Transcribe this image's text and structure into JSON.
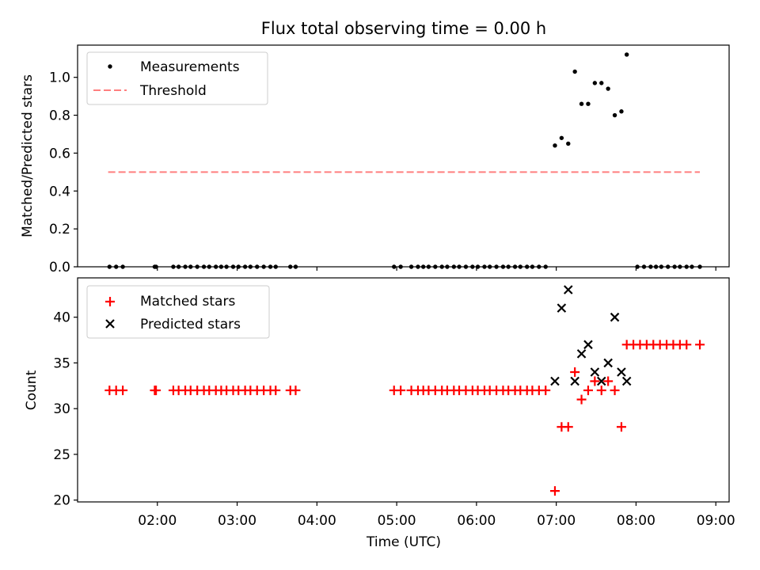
{
  "chart_data": [
    {
      "type": "scatter",
      "title": "Flux total observing time = 0.00 h",
      "ylabel": "Matched/Predicted stars",
      "xlabel": "",
      "ylim": [
        0,
        1.17
      ],
      "xlim": [
        "01:00",
        "09:10"
      ],
      "yticks": [
        0.0,
        0.2,
        0.4,
        0.6,
        0.8,
        1.0
      ],
      "ytick_labels": [
        "0.0",
        "0.2",
        "0.4",
        "0.6",
        "0.8",
        "1.0"
      ],
      "legend_position": "top-left",
      "series": [
        {
          "name": "Measurements",
          "color": "#000000",
          "marker": "dot",
          "points": [
            [
              "01:24",
              0
            ],
            [
              "01:29",
              0
            ],
            [
              "01:34",
              0
            ],
            [
              "01:58",
              0
            ],
            [
              "01:59",
              0
            ],
            [
              "02:12",
              0
            ],
            [
              "02:16",
              0
            ],
            [
              "02:21",
              0
            ],
            [
              "02:25",
              0
            ],
            [
              "02:30",
              0
            ],
            [
              "02:35",
              0
            ],
            [
              "02:39",
              0
            ],
            [
              "02:44",
              0
            ],
            [
              "02:48",
              0
            ],
            [
              "02:52",
              0
            ],
            [
              "02:57",
              0
            ],
            [
              "03:01",
              0
            ],
            [
              "03:06",
              0
            ],
            [
              "03:10",
              0
            ],
            [
              "03:15",
              0
            ],
            [
              "03:20",
              0
            ],
            [
              "03:25",
              0
            ],
            [
              "03:29",
              0
            ],
            [
              "03:40",
              0
            ],
            [
              "03:44",
              0
            ],
            [
              "04:58",
              0
            ],
            [
              "05:03",
              0
            ],
            [
              "05:11",
              0
            ],
            [
              "05:16",
              0
            ],
            [
              "05:20",
              0
            ],
            [
              "05:24",
              0
            ],
            [
              "05:29",
              0
            ],
            [
              "05:34",
              0
            ],
            [
              "05:38",
              0
            ],
            [
              "05:43",
              0
            ],
            [
              "05:47",
              0
            ],
            [
              "05:52",
              0
            ],
            [
              "05:57",
              0
            ],
            [
              "06:01",
              0
            ],
            [
              "06:06",
              0
            ],
            [
              "06:10",
              0
            ],
            [
              "06:15",
              0
            ],
            [
              "06:20",
              0
            ],
            [
              "06:24",
              0
            ],
            [
              "06:29",
              0
            ],
            [
              "06:33",
              0
            ],
            [
              "06:38",
              0
            ],
            [
              "06:42",
              0
            ],
            [
              "06:47",
              0
            ],
            [
              "06:52",
              0
            ],
            [
              "06:59",
              0.64
            ],
            [
              "07:04",
              0.68
            ],
            [
              "07:09",
              0.65
            ],
            [
              "07:14",
              1.03
            ],
            [
              "07:19",
              0.86
            ],
            [
              "07:24",
              0.86
            ],
            [
              "07:29",
              0.97
            ],
            [
              "07:34",
              0.97
            ],
            [
              "07:39",
              0.94
            ],
            [
              "07:44",
              0.8
            ],
            [
              "07:49",
              0.82
            ],
            [
              "07:53",
              1.12
            ],
            [
              "08:01",
              0
            ],
            [
              "08:06",
              0
            ],
            [
              "08:11",
              0
            ],
            [
              "08:15",
              0
            ],
            [
              "08:19",
              0
            ],
            [
              "08:24",
              0
            ],
            [
              "08:29",
              0
            ],
            [
              "08:33",
              0
            ],
            [
              "08:38",
              0
            ],
            [
              "08:42",
              0
            ],
            [
              "08:48",
              0
            ]
          ]
        },
        {
          "name": "Threshold",
          "color": "#ff7f7f",
          "marker": "dashed-line",
          "points": [
            [
              "01:23",
              0.5
            ],
            [
              "08:48",
              0.5
            ]
          ]
        }
      ]
    },
    {
      "type": "scatter",
      "title": "",
      "xlabel": "Time (UTC)",
      "ylabel": "Count",
      "ylim": [
        19.8,
        44.3
      ],
      "xlim": [
        "01:00",
        "09:10"
      ],
      "yticks": [
        20,
        25,
        30,
        35,
        40
      ],
      "ytick_labels": [
        "20",
        "25",
        "30",
        "35",
        "40"
      ],
      "xticks": [
        "02:00",
        "03:00",
        "04:00",
        "05:00",
        "06:00",
        "07:00",
        "08:00",
        "09:00"
      ],
      "legend_position": "top-left",
      "series": [
        {
          "name": "Matched stars",
          "color": "#ff0000",
          "marker": "plus",
          "points": [
            [
              "01:24",
              32
            ],
            [
              "01:29",
              32
            ],
            [
              "01:34",
              32
            ],
            [
              "01:58",
              32
            ],
            [
              "01:59",
              32
            ],
            [
              "02:12",
              32
            ],
            [
              "02:16",
              32
            ],
            [
              "02:21",
              32
            ],
            [
              "02:25",
              32
            ],
            [
              "02:30",
              32
            ],
            [
              "02:35",
              32
            ],
            [
              "02:39",
              32
            ],
            [
              "02:44",
              32
            ],
            [
              "02:48",
              32
            ],
            [
              "02:52",
              32
            ],
            [
              "02:57",
              32
            ],
            [
              "03:01",
              32
            ],
            [
              "03:06",
              32
            ],
            [
              "03:10",
              32
            ],
            [
              "03:15",
              32
            ],
            [
              "03:20",
              32
            ],
            [
              "03:25",
              32
            ],
            [
              "03:29",
              32
            ],
            [
              "03:40",
              32
            ],
            [
              "03:44",
              32
            ],
            [
              "04:58",
              32
            ],
            [
              "05:03",
              32
            ],
            [
              "05:11",
              32
            ],
            [
              "05:16",
              32
            ],
            [
              "05:20",
              32
            ],
            [
              "05:24",
              32
            ],
            [
              "05:29",
              32
            ],
            [
              "05:34",
              32
            ],
            [
              "05:38",
              32
            ],
            [
              "05:43",
              32
            ],
            [
              "05:47",
              32
            ],
            [
              "05:52",
              32
            ],
            [
              "05:57",
              32
            ],
            [
              "06:01",
              32
            ],
            [
              "06:06",
              32
            ],
            [
              "06:10",
              32
            ],
            [
              "06:15",
              32
            ],
            [
              "06:20",
              32
            ],
            [
              "06:24",
              32
            ],
            [
              "06:29",
              32
            ],
            [
              "06:33",
              32
            ],
            [
              "06:38",
              32
            ],
            [
              "06:42",
              32
            ],
            [
              "06:47",
              32
            ],
            [
              "06:52",
              32
            ],
            [
              "06:59",
              21
            ],
            [
              "07:04",
              28
            ],
            [
              "07:09",
              28
            ],
            [
              "07:14",
              34
            ],
            [
              "07:19",
              31
            ],
            [
              "07:24",
              32
            ],
            [
              "07:29",
              33
            ],
            [
              "07:34",
              32
            ],
            [
              "07:39",
              33
            ],
            [
              "07:44",
              32
            ],
            [
              "07:49",
              28
            ],
            [
              "07:53",
              37
            ],
            [
              "07:58",
              37
            ],
            [
              "08:03",
              37
            ],
            [
              "08:08",
              37
            ],
            [
              "08:13",
              37
            ],
            [
              "08:18",
              37
            ],
            [
              "08:23",
              37
            ],
            [
              "08:28",
              37
            ],
            [
              "08:33",
              37
            ],
            [
              "08:38",
              37
            ],
            [
              "08:48",
              37
            ]
          ]
        },
        {
          "name": "Predicted stars",
          "color": "#000000",
          "marker": "x",
          "points": [
            [
              "06:59",
              33
            ],
            [
              "07:04",
              41
            ],
            [
              "07:09",
              43
            ],
            [
              "07:14",
              33
            ],
            [
              "07:19",
              36
            ],
            [
              "07:24",
              37
            ],
            [
              "07:29",
              34
            ],
            [
              "07:34",
              33
            ],
            [
              "07:39",
              35
            ],
            [
              "07:44",
              40
            ],
            [
              "07:49",
              34
            ],
            [
              "07:53",
              33
            ]
          ]
        }
      ]
    }
  ]
}
